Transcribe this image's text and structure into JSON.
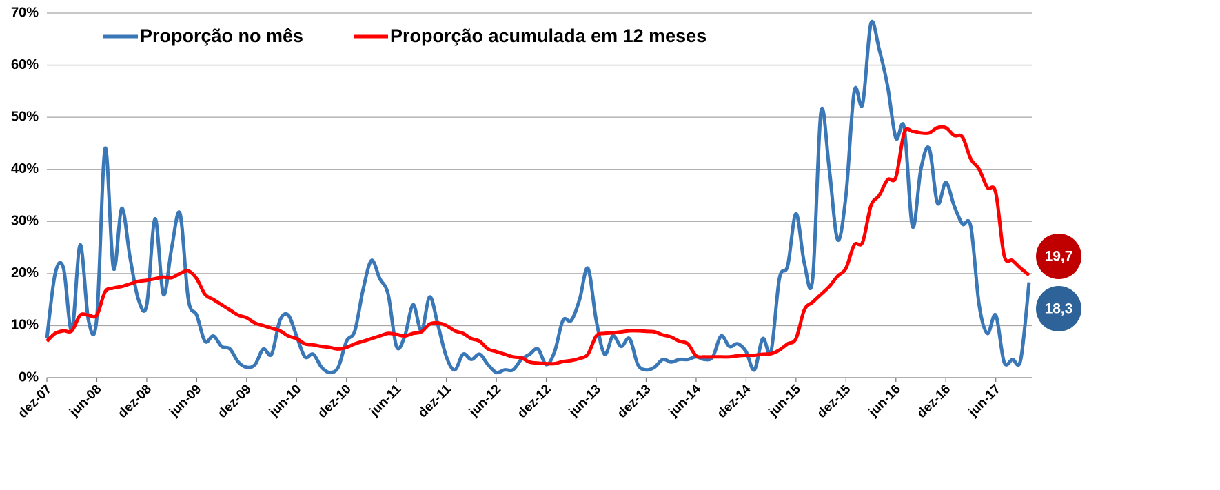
{
  "chart_data": {
    "type": "line",
    "categories": [
      "dez-07",
      null,
      null,
      null,
      null,
      null,
      "jun-08",
      null,
      null,
      null,
      null,
      null,
      "dez-08",
      null,
      null,
      null,
      null,
      null,
      "jun-09",
      null,
      null,
      null,
      null,
      null,
      "dez-09",
      null,
      null,
      null,
      null,
      null,
      "jun-10",
      null,
      null,
      null,
      null,
      null,
      "dez-10",
      null,
      null,
      null,
      null,
      null,
      "jun-11",
      null,
      null,
      null,
      null,
      null,
      "dez-11",
      null,
      null,
      null,
      null,
      null,
      "jun-12",
      null,
      null,
      null,
      null,
      null,
      "dez-12",
      null,
      null,
      null,
      null,
      null,
      "jun-13",
      null,
      null,
      null,
      null,
      null,
      "dez-13",
      null,
      null,
      null,
      null,
      null,
      "jun-14",
      null,
      null,
      null,
      null,
      null,
      "dez-14",
      null,
      null,
      null,
      null,
      null,
      "jun-15",
      null,
      null,
      null,
      null,
      null,
      "dez-15",
      null,
      null,
      null,
      null,
      null,
      "jun-16",
      null,
      null,
      null,
      null,
      null,
      "dez-16",
      null,
      null,
      null,
      null,
      null,
      "jun-17",
      null,
      null,
      null,
      null
    ],
    "series": [
      {
        "name": "Proporção no mês",
        "color": "#3a77b7",
        "end_label": "18,3",
        "label_color": "#2e6399",
        "values": [
          7.5,
          20,
          21,
          9,
          25.5,
          11,
          11.5,
          44,
          21,
          32.5,
          23,
          15,
          14,
          30.5,
          16,
          25,
          31.5,
          15,
          12,
          7,
          8,
          6,
          5.5,
          3,
          2,
          2.5,
          5.5,
          4.5,
          11,
          12,
          8,
          4,
          4.5,
          2,
          1,
          2,
          7,
          9,
          17,
          22.5,
          19,
          16,
          6,
          8,
          14,
          9,
          15.5,
          10,
          4,
          1.5,
          4.5,
          3.5,
          4.5,
          2.5,
          1,
          1.5,
          1.5,
          3.5,
          4.5,
          5.5,
          2.5,
          5,
          11,
          11,
          15,
          21,
          11,
          4.5,
          8,
          6,
          7.5,
          2.5,
          1.5,
          2,
          3.5,
          3,
          3.5,
          3.5,
          4,
          3.5,
          4,
          8,
          6,
          6.5,
          5,
          1.5,
          7.5,
          5,
          19,
          21.5,
          31.5,
          22,
          19,
          51,
          40,
          26.5,
          35,
          55,
          52.5,
          68,
          63,
          56,
          46,
          48,
          29,
          40,
          44,
          33.5,
          37.5,
          33,
          29.5,
          29,
          14,
          8.5,
          12,
          3,
          3.5,
          3.5,
          18.3
        ]
      },
      {
        "name": "Proporção acumulada em 12 meses",
        "color": "#ff0000",
        "end_label": "19,7",
        "label_color": "#c00000",
        "values": [
          7,
          8.5,
          9,
          9,
          12,
          12,
          12,
          16.5,
          17.2,
          17.5,
          18,
          18.5,
          18.7,
          19,
          19.3,
          19.2,
          20,
          20.5,
          19,
          16,
          15,
          14,
          13,
          12,
          11.5,
          10.5,
          10,
          9.5,
          9,
          8,
          7.5,
          6.5,
          6.3,
          6,
          5.8,
          5.5,
          5.8,
          6.5,
          7,
          7.5,
          8,
          8.5,
          8.3,
          8,
          8.5,
          8.8,
          10.3,
          10.5,
          10,
          9,
          8.5,
          7.5,
          7,
          5.5,
          5,
          4.5,
          4,
          3.8,
          3,
          2.8,
          2.7,
          2.7,
          3.1,
          3.3,
          3.7,
          4.5,
          8,
          8.5,
          8.6,
          8.8,
          9,
          9,
          8.9,
          8.8,
          8.2,
          7.8,
          7,
          6.5,
          4.2,
          4,
          4,
          4,
          4,
          4.2,
          4.3,
          4.3,
          4.5,
          4.6,
          5.3,
          6.5,
          7.5,
          13,
          14.5,
          16,
          17.5,
          19.5,
          21,
          25.5,
          26,
          33,
          35,
          38,
          38.5,
          47,
          47.3,
          47,
          47,
          48,
          48,
          46.5,
          46.2,
          42,
          40,
          36.5,
          35.5,
          23.5,
          22.5,
          21,
          19.7
        ]
      }
    ],
    "ylim": [
      0,
      70
    ],
    "yticks": [
      {
        "value": 0,
        "label": "0%"
      },
      {
        "value": 10,
        "label": "10%"
      },
      {
        "value": 20,
        "label": "20%"
      },
      {
        "value": 30,
        "label": "30%"
      },
      {
        "value": 40,
        "label": "40%"
      },
      {
        "value": 50,
        "label": "50%"
      },
      {
        "value": 60,
        "label": "60%"
      },
      {
        "value": 70,
        "label": "70%"
      }
    ],
    "grid": true,
    "legend": "top-left"
  }
}
